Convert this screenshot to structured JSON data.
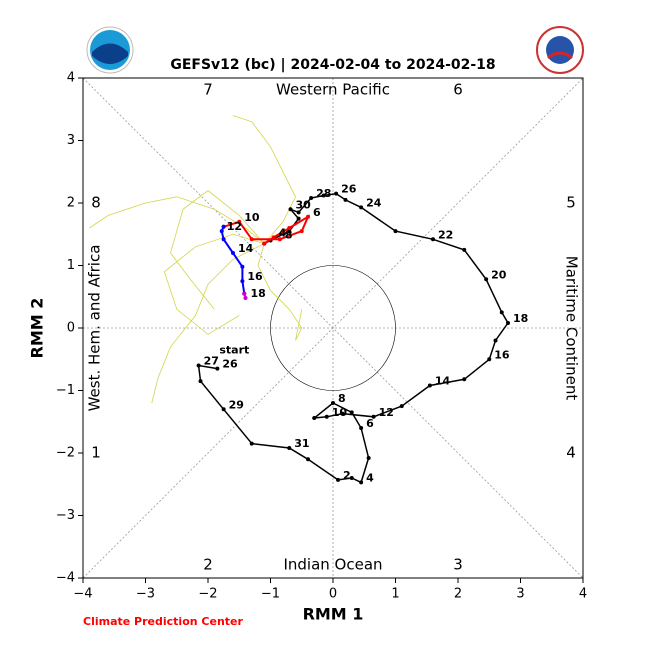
{
  "chart_data": {
    "type": "line",
    "title": "GEFSv12 (bc) | 2024-02-04 to 2024-02-18",
    "x_label": "RMM 1",
    "y_label": "RMM 2",
    "footer": "Climate Prediction Center",
    "start_label": "start",
    "phase_labels": [
      "1",
      "2",
      "3",
      "4",
      "5",
      "6",
      "7",
      "8"
    ],
    "region_labels": {
      "top": "Western Pacific",
      "bottom": "Indian Ocean",
      "left": "West. Hem. and Africa",
      "right": "Maritime Continent"
    },
    "xlim": [
      -4,
      4
    ],
    "ylim": [
      -4,
      4
    ],
    "unit_circle": 1,
    "xticks": [
      {
        "value": -4,
        "label": "−4"
      },
      {
        "value": -3,
        "label": "−3"
      },
      {
        "value": -2,
        "label": "−2"
      },
      {
        "value": -1,
        "label": "−1"
      },
      0,
      1,
      2,
      3,
      4
    ],
    "yticks": [
      {
        "value": -4,
        "label": "−4"
      },
      {
        "value": -3,
        "label": "−3"
      },
      {
        "value": -2,
        "label": "−2"
      },
      {
        "value": -1,
        "label": "−1"
      },
      0,
      1,
      2,
      3,
      4
    ],
    "ensemble": {
      "color": "#d4d44a",
      "members": [
        {
          "x": [
            -1.1,
            -1.5,
            -2,
            -2.4,
            -2.6,
            -2.3,
            -1.9
          ],
          "y": [
            1.35,
            1.8,
            2.2,
            1.9,
            1.2,
            0.8,
            0.3
          ]
        },
        {
          "x": [
            -1.1,
            -1.4,
            -1.9,
            -2.5,
            -3.0,
            -3.6,
            -3.9
          ],
          "y": [
            1.35,
            1.6,
            1.9,
            2.1,
            2.0,
            1.8,
            1.6
          ]
        },
        {
          "x": [
            -1.1,
            -1.6,
            -2.0,
            -2.2,
            -2.6,
            -2.8,
            -2.9
          ],
          "y": [
            1.35,
            1.1,
            0.7,
            0.2,
            -0.3,
            -0.8,
            -1.2
          ]
        },
        {
          "x": [
            -1.1,
            -0.8,
            -0.6,
            -0.8,
            -1.0,
            -1.3,
            -1.6
          ],
          "y": [
            1.35,
            1.7,
            2.1,
            2.5,
            2.9,
            3.3,
            3.4
          ]
        },
        {
          "x": [
            -1.1,
            -1.2,
            -1.0,
            -0.7,
            -0.5,
            -0.6,
            -0.5
          ],
          "y": [
            1.35,
            1.0,
            0.6,
            0.3,
            0.0,
            -0.2,
            0.3
          ]
        },
        {
          "x": [
            -1.1,
            -1.6,
            -2.2,
            -2.7,
            -2.5,
            -2.0,
            -1.5
          ],
          "y": [
            1.35,
            1.5,
            1.3,
            0.9,
            0.3,
            -0.1,
            0.2
          ]
        }
      ]
    },
    "series": [
      {
        "color": "#000000",
        "x": [
          -1.85,
          -2.15,
          -2.12,
          -1.75,
          -1.3,
          -0.7,
          -0.4,
          0.08,
          0.3,
          0.45,
          0.57,
          0.45,
          0.3,
          0.0,
          -0.3,
          -0.1,
          0.15,
          0.65,
          1.1,
          1.55,
          2.1,
          2.5,
          2.6,
          2.8,
          2.7,
          2.45,
          2.1,
          1.6,
          1.0,
          0.45,
          0.2,
          0.05,
          -0.15,
          -0.35,
          -0.55,
          -0.68,
          -0.55,
          -0.7,
          -1.0,
          -1.1
        ],
        "y": [
          -0.65,
          -0.6,
          -0.85,
          -1.3,
          -1.85,
          -1.92,
          -2.1,
          -2.43,
          -2.4,
          -2.47,
          -2.08,
          -1.6,
          -1.35,
          -1.2,
          -1.44,
          -1.42,
          -1.37,
          -1.42,
          -1.25,
          -0.92,
          -0.82,
          -0.5,
          -0.2,
          0.08,
          0.25,
          0.78,
          1.25,
          1.42,
          1.55,
          1.93,
          2.05,
          2.15,
          2.12,
          2.08,
          1.85,
          1.9,
          1.75,
          1.55,
          1.4,
          1.35
        ],
        "point_labels": [
          "26",
          "27",
          null,
          "29",
          null,
          "31",
          null,
          "2",
          null,
          "4",
          null,
          "6",
          null,
          "8",
          null,
          "10",
          null,
          "12",
          null,
          "14",
          null,
          "16",
          null,
          "18",
          null,
          "20",
          null,
          "22",
          null,
          "24",
          null,
          "26",
          null,
          "28",
          null,
          "30",
          null,
          null,
          null,
          null
        ]
      },
      {
        "color": "#ff0000",
        "x": [
          -1.1,
          -0.95,
          -0.7,
          -0.4,
          -0.5,
          -0.85,
          -1.3,
          -1.5,
          -1.75
        ],
        "y": [
          1.35,
          1.45,
          1.6,
          1.78,
          1.55,
          1.42,
          1.42,
          1.7,
          1.62
        ],
        "point_labels": [
          null,
          "4",
          null,
          "6",
          null,
          "8",
          null,
          "10",
          null
        ]
      },
      {
        "color": "#0000ff",
        "x": [
          -1.75,
          -1.78,
          -1.75,
          -1.6,
          -1.45,
          -1.45,
          -1.42
        ],
        "y": [
          1.62,
          1.55,
          1.42,
          1.2,
          0.98,
          0.75,
          0.55
        ],
        "point_labels": [
          null,
          "12",
          null,
          "14",
          null,
          "16",
          null
        ]
      },
      {
        "color": "#cc00cc",
        "x": [
          -1.42,
          -1.4
        ],
        "y": [
          0.55,
          0.48
        ],
        "point_labels": [
          null,
          "18"
        ]
      }
    ]
  }
}
